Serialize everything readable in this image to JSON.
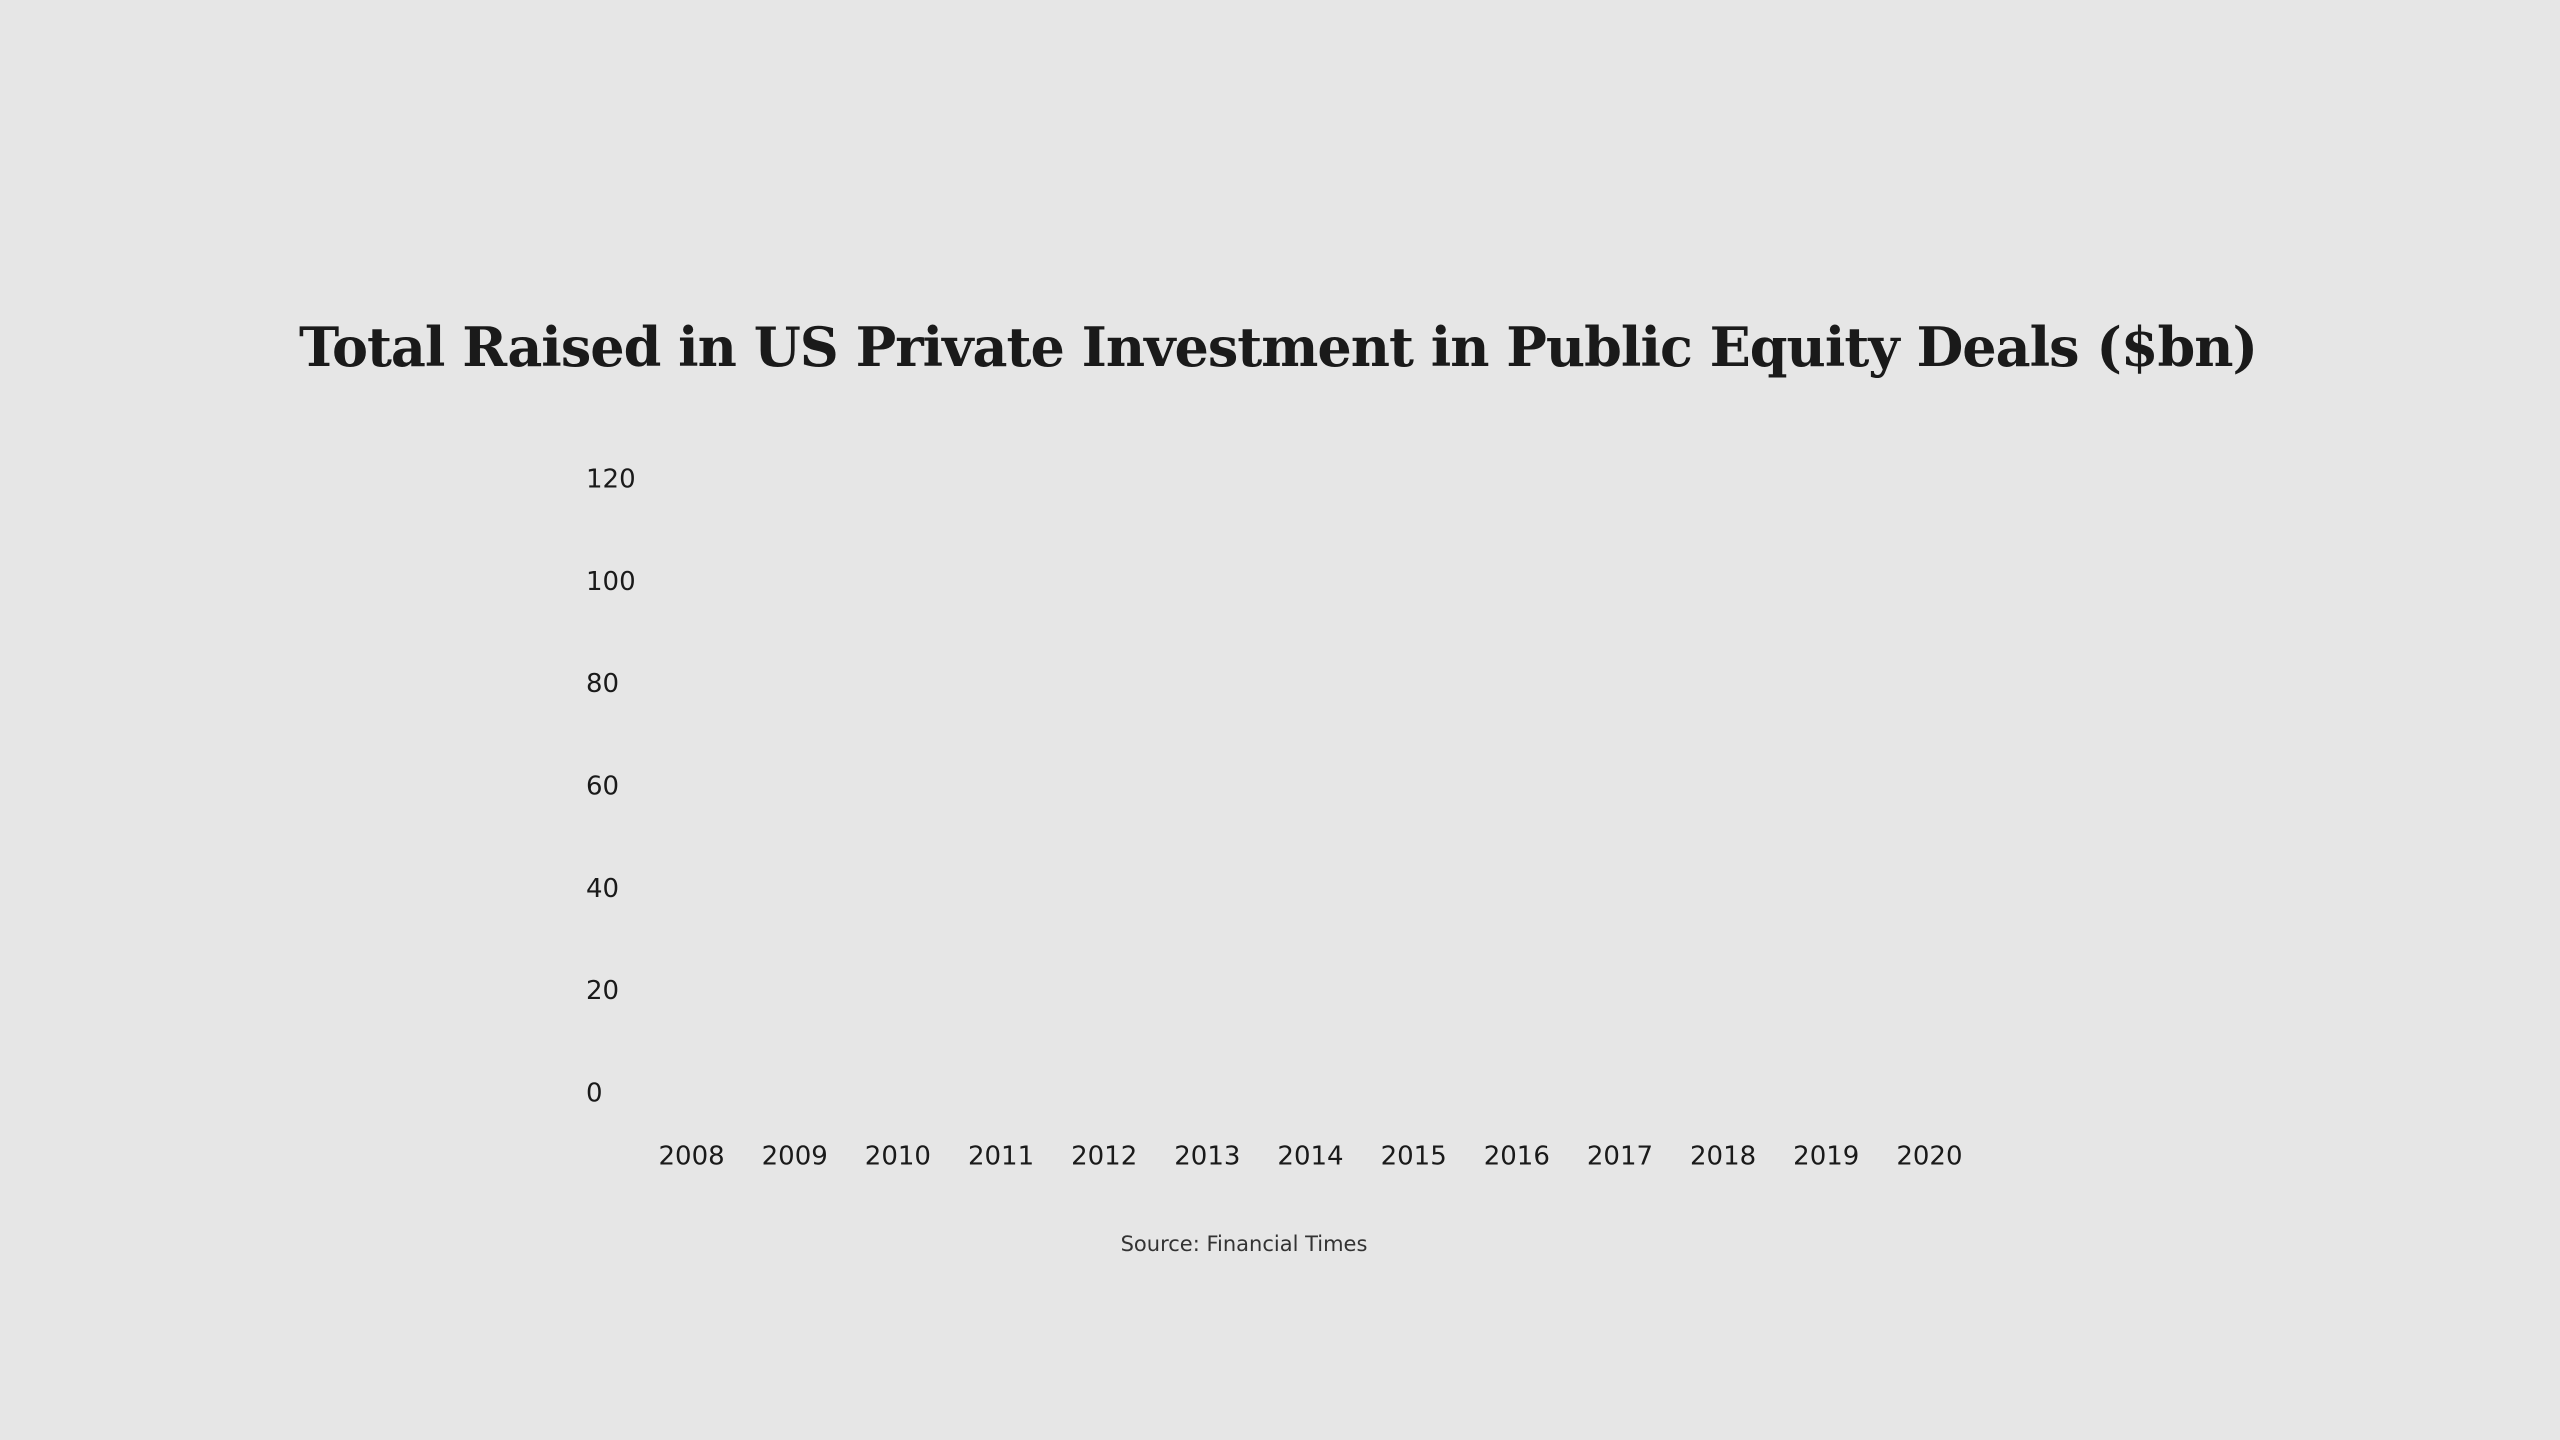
{
  "chart_data": {
    "type": "bar",
    "title": "Total Raised in US Private Investment in Public Equity Deals ($bn)",
    "categories": [
      "2008",
      "2009",
      "2010",
      "2011",
      "2012",
      "2013",
      "2014",
      "2015",
      "2016",
      "2017",
      "2018",
      "2019",
      "2020"
    ],
    "ylim": [
      0,
      120
    ],
    "yticks": [
      0,
      20,
      40,
      60,
      80,
      100,
      120
    ],
    "source": "Source: Financial Times"
  }
}
